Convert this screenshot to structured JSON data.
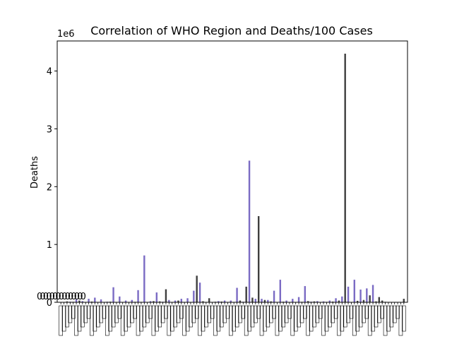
{
  "chart_data": {
    "type": "bar",
    "title": "Correlation of WHO Region and Deaths/100 Cases",
    "ylabel": "Deaths",
    "xlabel": "",
    "y_offset_text": "1e6",
    "ylim": [
      0,
      4520000
    ],
    "yticks": [
      0,
      1,
      2,
      3,
      4
    ],
    "ytick_labels": [
      "0",
      "1",
      "2",
      "3",
      "4"
    ],
    "ytick_scale": 1000000,
    "grid": false,
    "legend": "none",
    "series": [
      {
        "name": "",
        "color": "#3f3f3f",
        "values": [
          2000,
          15000,
          8000,
          30000,
          5000,
          12000,
          3000,
          6000,
          10000,
          2500,
          4000,
          1500,
          8000,
          7000,
          5000,
          20000,
          15000,
          225000,
          3000,
          30000,
          6000,
          4000,
          460000,
          18000,
          70000,
          9000,
          12000,
          3000,
          5000,
          30000,
          270000,
          80000,
          1490000,
          40000,
          15000,
          6000,
          10000,
          4000,
          3000,
          8000,
          20000,
          15000,
          5000,
          7000,
          12000,
          30000,
          4300000,
          6000,
          25000,
          40000,
          120000,
          15000,
          90000,
          30000,
          8000,
          5000,
          4000,
          2000,
          3000,
          1500,
          60000
        ]
      },
      {
        "name": "",
        "color": "#7b6bc4",
        "values": [
          3000,
          10000,
          50000,
          20000,
          60000,
          80000,
          50000,
          10000,
          260000,
          100000,
          30000,
          40000,
          210000,
          810000,
          20000,
          170000,
          10000,
          40000,
          30000,
          60000,
          70000,
          200000,
          340000,
          5000,
          4000,
          20000,
          30000,
          30000,
          250000,
          10000,
          2450000,
          60000,
          60000,
          40000,
          200000,
          390000,
          30000,
          60000,
          90000,
          280000,
          10000,
          20000,
          15000,
          30000,
          70000,
          100000,
          270000,
          390000,
          220000,
          240000,
          300000
        ]
      }
    ],
    "tick_label_glyphs": [
      "0",
      "0",
      "0",
      "0",
      "0",
      "0",
      "0",
      "0",
      "0",
      "0",
      "0",
      "0",
      "0",
      "0",
      "0"
    ]
  }
}
